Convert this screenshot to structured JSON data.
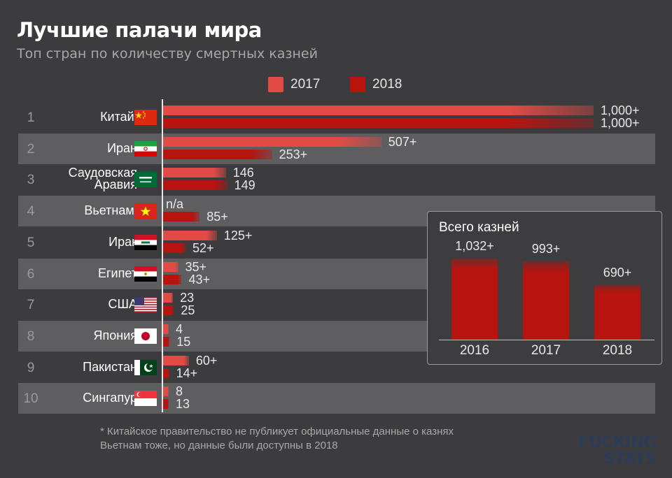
{
  "title": "Лучшие палачи мира",
  "subtitle": "Топ стран по количеству смертных казней",
  "legend": [
    "2017",
    "2018"
  ],
  "colors": {
    "y2017": "#e24b45",
    "y2018": "#b7130f",
    "background": "#3c3c3e",
    "row_shade": "#5e5e60"
  },
  "chart_data": {
    "type": "bar",
    "orientation": "horizontal",
    "title": "Лучшие палачи мира",
    "subtitle": "Топ стран по количеству смертных казней",
    "xmax": 1000,
    "categories": [
      "Китай",
      "Иран",
      "Саудовская Аравия",
      "Вьетнам",
      "Ирак",
      "Египет",
      "США",
      "Япония",
      "Пакистан",
      "Сингапур"
    ],
    "series": [
      {
        "name": "2017",
        "values": [
          1000,
          507,
          146,
          null,
          125,
          35,
          23,
          4,
          60,
          8
        ],
        "labels": [
          "1,000+",
          "507+",
          "146",
          "n/a",
          "125+",
          "35+",
          "23",
          "4",
          "60+",
          "8"
        ]
      },
      {
        "name": "2018",
        "values": [
          1000,
          253,
          149,
          85,
          52,
          43,
          25,
          15,
          14,
          13
        ],
        "labels": [
          "1,000+",
          "253+",
          "149",
          "85+",
          "52+",
          "43+",
          "25",
          "15",
          "14+",
          "13"
        ]
      }
    ]
  },
  "rows": [
    {
      "rank": "1",
      "country": "Китай",
      "star": "*",
      "flag": "china-flag"
    },
    {
      "rank": "2",
      "country": "Иран",
      "star": "",
      "flag": "iran-flag"
    },
    {
      "rank": "3",
      "country": "Саудовская Аравия",
      "line1": "Саудовская",
      "line2": "Аравия",
      "star": "",
      "flag": "saudi-arabia-flag"
    },
    {
      "rank": "4",
      "country": "Вьетнам",
      "star": "*",
      "flag": "vietnam-flag"
    },
    {
      "rank": "5",
      "country": "Ирак",
      "star": "",
      "flag": "iraq-flag"
    },
    {
      "rank": "6",
      "country": "Египет",
      "star": "",
      "flag": "egypt-flag"
    },
    {
      "rank": "7",
      "country": "США",
      "star": "",
      "flag": "usa-flag"
    },
    {
      "rank": "8",
      "country": "Япония",
      "star": "",
      "flag": "japan-flag"
    },
    {
      "rank": "9",
      "country": "Пакистан",
      "star": "",
      "flag": "pakistan-flag"
    },
    {
      "rank": "10",
      "country": "Сингапур",
      "star": "",
      "flag": "singapore-flag"
    }
  ],
  "inset": {
    "title": "Всего казней",
    "years": [
      "2016",
      "2017",
      "2018"
    ],
    "values": [
      1032,
      993,
      690
    ],
    "labels": [
      "1,032+",
      "993+",
      "690+"
    ],
    "ymax": 1100
  },
  "footnote": {
    "star": "*",
    "line1": " Китайское правительство не публикует официальные данные о казнях",
    "line2": "Вьетнам тоже, но данные были доступны в 2018"
  },
  "logo": {
    "line1": "FUCKING",
    "line2": "STATS"
  }
}
